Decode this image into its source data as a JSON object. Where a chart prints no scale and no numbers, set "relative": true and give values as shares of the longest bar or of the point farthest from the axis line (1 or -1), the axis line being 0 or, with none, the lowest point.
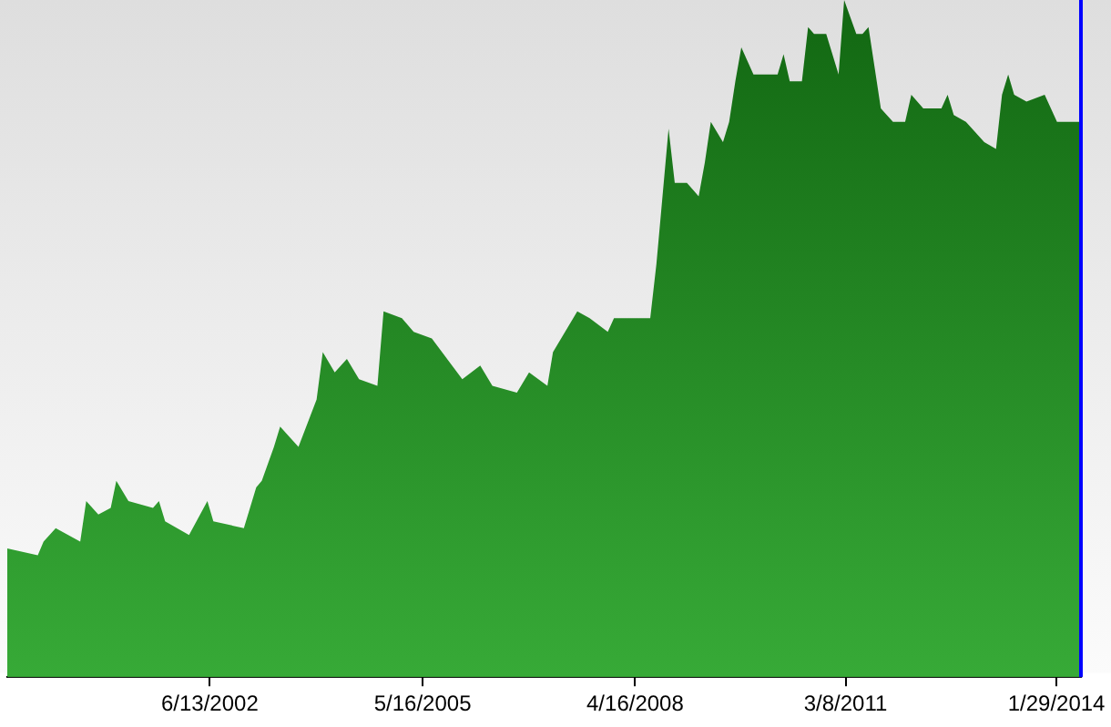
{
  "chart_data": {
    "type": "area",
    "relative": true,
    "color": "#1c9e1c",
    "grid": false,
    "legend": false,
    "x": [
      "1999-09",
      "2000-02",
      "2000-03",
      "2000-05",
      "2000-09",
      "2000-10",
      "2000-12",
      "2001-02",
      "2001-03",
      "2001-05",
      "2001-09",
      "2001-10",
      "2001-11",
      "2002-03",
      "2002-06",
      "2002-07",
      "2002-12",
      "2003-02",
      "2003-03",
      "2003-05",
      "2003-06",
      "2003-09",
      "2003-12",
      "2004-01",
      "2004-03",
      "2004-05",
      "2004-07",
      "2004-10",
      "2004-11",
      "2005-02",
      "2005-04",
      "2005-07",
      "2005-12",
      "2006-03",
      "2006-05",
      "2006-09",
      "2006-11",
      "2007-02",
      "2007-03",
      "2007-07",
      "2007-09",
      "2007-12",
      "2008-01",
      "2008-04",
      "2008-07",
      "2008-08",
      "2008-10",
      "2008-11",
      "2009-01",
      "2009-03",
      "2009-04",
      "2009-05",
      "2009-07",
      "2009-08",
      "2009-09",
      "2009-10",
      "2009-12",
      "2010-01",
      "2010-04",
      "2010-05",
      "2010-06",
      "2010-08",
      "2010-09",
      "2010-10",
      "2010-12",
      "2011-02",
      "2011-03",
      "2011-05",
      "2011-06",
      "2011-07",
      "2011-08",
      "2011-09",
      "2011-11",
      "2012-01",
      "2012-02",
      "2012-04",
      "2012-07",
      "2012-08",
      "2012-09",
      "2012-11",
      "2013-02",
      "2013-04",
      "2013-05",
      "2013-06",
      "2013-07",
      "2013-09",
      "2013-12",
      "2014-02",
      "2014-04",
      "2014-06"
    ],
    "values": [
      0.19,
      0.18,
      0.2,
      0.22,
      0.2,
      0.26,
      0.24,
      0.25,
      0.29,
      0.26,
      0.25,
      0.26,
      0.23,
      0.21,
      0.26,
      0.23,
      0.22,
      0.28,
      0.29,
      0.34,
      0.37,
      0.34,
      0.41,
      0.48,
      0.45,
      0.47,
      0.44,
      0.43,
      0.54,
      0.53,
      0.51,
      0.5,
      0.44,
      0.46,
      0.43,
      0.42,
      0.45,
      0.43,
      0.48,
      0.54,
      0.53,
      0.51,
      0.53,
      0.53,
      0.53,
      0.61,
      0.81,
      0.73,
      0.73,
      0.71,
      0.76,
      0.82,
      0.79,
      0.82,
      0.88,
      0.93,
      0.89,
      0.89,
      0.89,
      0.92,
      0.88,
      0.88,
      0.96,
      0.95,
      0.95,
      0.89,
      1,
      0.95,
      0.95,
      0.96,
      0.9,
      0.84,
      0.82,
      0.82,
      0.86,
      0.84,
      0.84,
      0.86,
      0.83,
      0.82,
      0.79,
      0.78,
      0.86,
      0.89,
      0.86,
      0.85,
      0.86,
      0.82,
      0.82,
      0.82
    ],
    "xlim": [
      "1999-09",
      "2014-06"
    ],
    "xticks": [
      {
        "value": "2002-06-13",
        "label": "6/13/2002"
      },
      {
        "value": "2005-05-16",
        "label": "5/16/2005"
      },
      {
        "value": "2008-04-16",
        "label": "4/16/2008"
      },
      {
        "value": "2011-03-08",
        "label": "3/8/2011"
      },
      {
        "value": "2014-01-29",
        "label": "1/29/2014"
      }
    ],
    "ref_lines": [
      {
        "axis": "x",
        "value": "2014-06",
        "color": "#0000ff"
      }
    ]
  }
}
